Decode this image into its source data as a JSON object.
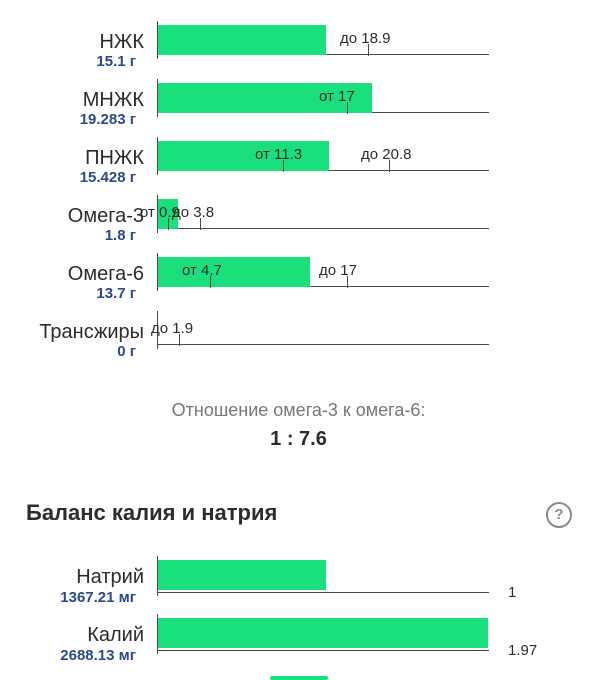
{
  "fats": {
    "rows": [
      {
        "name": "НЖК",
        "amount": "15.1 г",
        "value": 15.1,
        "ticks": [
          {
            "label": "до 18.9",
            "value": 18.9
          }
        ]
      },
      {
        "name": "МНЖК",
        "amount": "19.283 г",
        "value": 19.283,
        "ticks": [
          {
            "label": "от 17",
            "value": 17
          }
        ]
      },
      {
        "name": "ПНЖК",
        "amount": "15.428 г",
        "value": 15.428,
        "ticks": [
          {
            "label": "от 11.3",
            "value": 11.3
          },
          {
            "label": "до 20.8",
            "value": 20.8
          }
        ]
      },
      {
        "name": "Омега-3",
        "amount": "1.8 г",
        "value": 1.8,
        "ticks": [
          {
            "label": "от 0.9",
            "value": 0.9
          },
          {
            "label": "до 3.8",
            "value": 3.8
          }
        ]
      },
      {
        "name": "Омега-6",
        "amount": "13.7 г",
        "value": 13.7,
        "ticks": [
          {
            "label": "от 4.7",
            "value": 4.7
          },
          {
            "label": "до 17",
            "value": 17
          }
        ]
      },
      {
        "name": "Трансжиры",
        "amount": "0 г",
        "value": 0,
        "ticks": [
          {
            "label": "до 1.9",
            "value": 1.9
          }
        ]
      }
    ]
  },
  "ratio": {
    "caption": "Отношение омега-3 к омега-6:",
    "value": "1 : 7.6"
  },
  "balance": {
    "title": "Баланс калия и натрия",
    "help_icon": "question-circle-icon",
    "rows": [
      {
        "name": "Натрий",
        "amount": "1367.21 мг",
        "ratio": 1,
        "ratio_label": "1"
      },
      {
        "name": "Калий",
        "amount": "2688.13 мг",
        "ratio": 1.97,
        "ratio_label": "1.97"
      }
    ]
  },
  "colors": {
    "bar": "#19e07d",
    "amount_text": "#2b4a8a",
    "caption": "#777777"
  }
}
